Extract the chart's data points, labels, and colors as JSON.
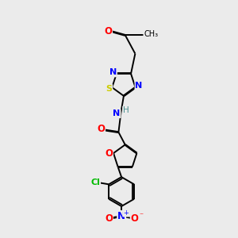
{
  "background_color": "#ebebeb",
  "bond_color": "#000000",
  "atom_colors": {
    "O": "#ff0000",
    "N": "#0000ff",
    "S": "#cccc00",
    "Cl": "#00bb00",
    "C": "#000000",
    "H": "#4a9090"
  },
  "figsize": [
    3.0,
    3.0
  ],
  "dpi": 100
}
